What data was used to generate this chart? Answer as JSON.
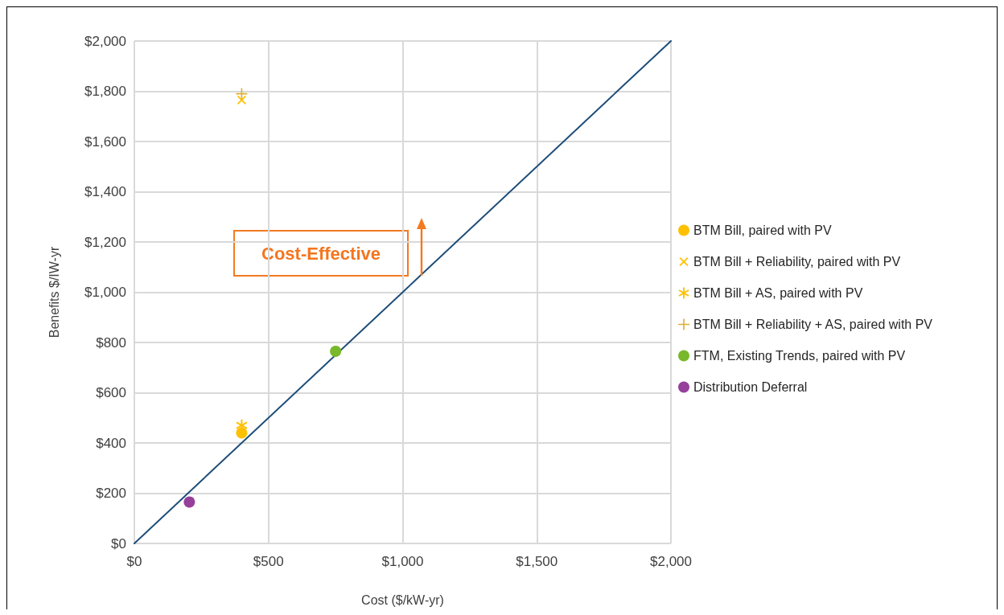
{
  "chart_data": {
    "type": "scatter",
    "xlabel": "Cost ($/kW-yr)",
    "ylabel": "Benefits $/IW-yr",
    "annotations": [
      "Cost-Effective"
    ],
    "xlim": [
      0,
      2000
    ],
    "xticks": [
      {
        "value": 0,
        "label": "$0"
      },
      {
        "value": 500,
        "label": "$500"
      },
      {
        "value": 1000,
        "label": "$1,000"
      },
      {
        "value": 1500,
        "label": "$1,500"
      },
      {
        "value": 2000,
        "label": "$2,000"
      }
    ],
    "ylim": [
      0,
      2000
    ],
    "yticks": [
      {
        "value": 0,
        "label": "$0"
      },
      {
        "value": 200,
        "label": "$200"
      },
      {
        "value": 400,
        "label": "$400"
      },
      {
        "value": 600,
        "label": "$600"
      },
      {
        "value": 800,
        "label": "$800"
      },
      {
        "value": 1000,
        "label": "$1,000"
      },
      {
        "value": 1200,
        "label": "$1,200"
      },
      {
        "value": 1400,
        "label": "$1,400"
      },
      {
        "value": 1600,
        "label": "$1,600"
      },
      {
        "value": 1800,
        "label": "$1,800"
      },
      {
        "value": 2000,
        "label": "$2,000"
      }
    ],
    "grid": true,
    "legend": "right",
    "series": [
      {
        "name": "BTM Bill, paired with PV",
        "color": "#ffc000",
        "marker": "circle",
        "x": [
          400
        ],
        "values": [
          440
        ]
      },
      {
        "name": "BTM Bill + Reliability, paired with PV",
        "color": "#ffc000",
        "marker": "cross",
        "x": [
          400
        ],
        "values": [
          1765
        ]
      },
      {
        "name": "BTM Bill + AS, paired with PV",
        "color": "#ffc000",
        "marker": "star",
        "x": [
          400
        ],
        "values": [
          470
        ]
      },
      {
        "name": "BTM Bill + Reliability + AS, paired with PV",
        "color": "#deae36",
        "marker": "plus",
        "x": [
          400
        ],
        "values": [
          1790
        ]
      },
      {
        "name": "FTM, Existing Trends, paired with PV",
        "color": "#78b82a",
        "marker": "circle",
        "x": [
          750
        ],
        "values": [
          765
        ]
      },
      {
        "name": "Distribution Deferral",
        "color": "#963f9b",
        "marker": "circle",
        "x": [
          205
        ],
        "values": [
          165
        ]
      },
      {
        "type": "line",
        "color": "#1f4e79",
        "marker": "none",
        "line_style": "solid",
        "x": [
          0,
          2000
        ],
        "values": [
          0,
          2000
        ]
      }
    ]
  }
}
